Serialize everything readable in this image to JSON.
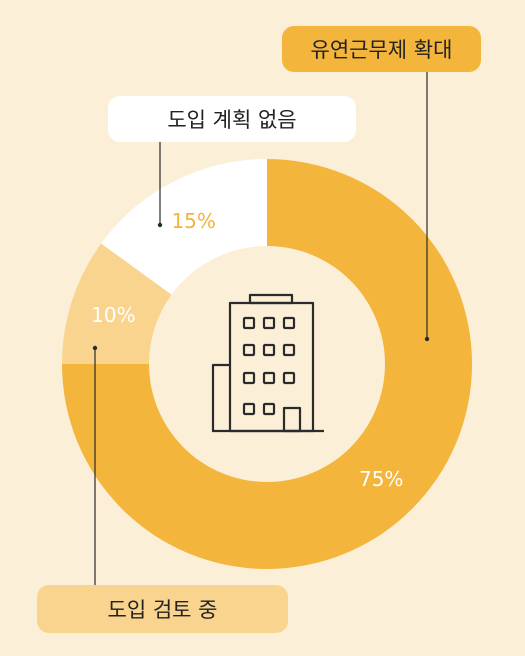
{
  "chart_data": {
    "type": "pie",
    "donut": true,
    "slices": [
      {
        "label": "유연근무제 확대",
        "value": 75,
        "display": "75%",
        "color": "#F3B53B",
        "text_color": "#FFFFFF"
      },
      {
        "label": "도입 검토 중",
        "value": 10,
        "display": "10%",
        "color": "#F9D48E",
        "text_color": "#FFFFFF"
      },
      {
        "label": "도입 계획 없음",
        "value": 15,
        "display": "15%",
        "color": "#FFFFFF",
        "text_color": "#F3B53B"
      }
    ],
    "center_icon": "building-icon",
    "background": "#FBEFD8"
  }
}
